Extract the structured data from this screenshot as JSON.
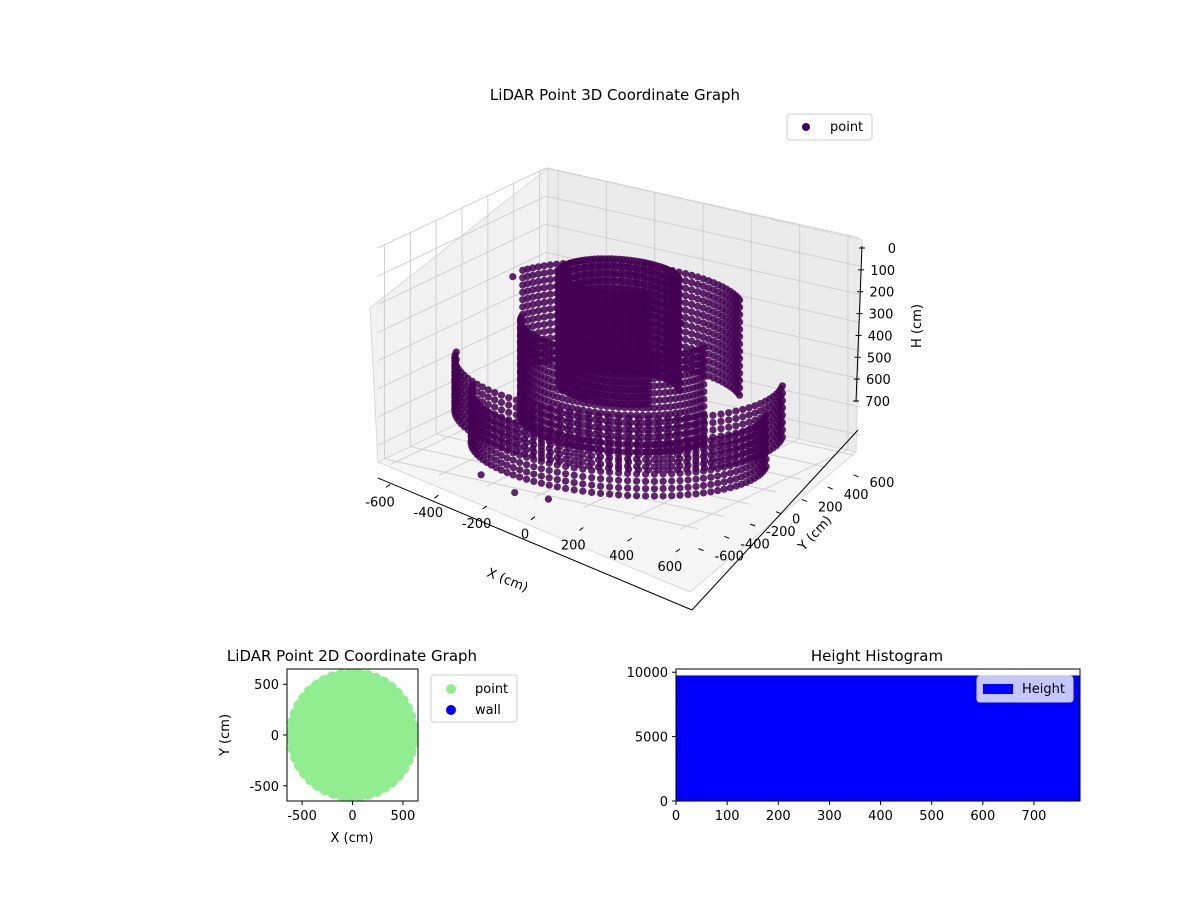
{
  "chart_data": [
    {
      "type": "scatter",
      "projection": "3d",
      "title": "LiDAR Point 3D Coordinate Graph",
      "xlabel": "X (cm)",
      "ylabel": "Y (cm)",
      "zlabel": "H (cm)",
      "xlim": [
        -650,
        650
      ],
      "ylim": [
        -650,
        650
      ],
      "zlim": [
        760,
        0
      ],
      "zaxis_inverted": true,
      "xticks": [
        -600,
        -400,
        -200,
        0,
        200,
        400,
        600
      ],
      "yticks": [
        -600,
        -400,
        -200,
        0,
        200,
        400,
        600
      ],
      "zticks": [
        0,
        100,
        200,
        300,
        400,
        500,
        600,
        700
      ],
      "legend": "top-right",
      "grid": true,
      "series": [
        {
          "name": "point",
          "color": "#440154",
          "structure": "concentric dome-shaped rings",
          "rings": [
            {
              "radius": 600,
              "h_low": 450,
              "h_high": 650,
              "theta_from": 200,
              "theta_to": 385
            },
            {
              "radius": 540,
              "h_low": 560,
              "h_high": 760,
              "theta_from": 200,
              "theta_to": 385
            },
            {
              "radius": 450,
              "h_low": 200,
              "h_high": 560,
              "theta_from": 40,
              "theta_to": 170
            },
            {
              "radius": 360,
              "h_low": 300,
              "h_high": 640,
              "theta_from": 200,
              "theta_to": 360
            },
            {
              "radius": 220,
              "h_low": 120,
              "h_high": 520,
              "theta_from": 30,
              "theta_to": 330
            }
          ],
          "outliers": [
            {
              "x": -600,
              "y": 300,
              "h": 300
            },
            {
              "x": -250,
              "y": -600,
              "h": 740
            },
            {
              "x": 50,
              "y": -640,
              "h": 760
            },
            {
              "x": -100,
              "y": -620,
              "h": 770
            },
            {
              "x": 150,
              "y": 200,
              "h": 300
            }
          ]
        }
      ]
    },
    {
      "type": "scatter",
      "title": "LiDAR Point 2D Coordinate Graph",
      "xlabel": "X (cm)",
      "ylabel": "Y (cm)",
      "xlim": [
        -650,
        650
      ],
      "ylim": [
        -650,
        650
      ],
      "xticks": [
        -500,
        0,
        500
      ],
      "yticks": [
        -500,
        0,
        500
      ],
      "legend": "outside-right",
      "series": [
        {
          "name": "point",
          "color": "#90ee90",
          "fill": "dense circular region, radius ~620"
        },
        {
          "name": "wall",
          "color": "#0000ff",
          "points": []
        }
      ]
    },
    {
      "type": "bar",
      "title": "Height Histogram",
      "xlim": [
        0,
        790
      ],
      "ylim": [
        0,
        10250
      ],
      "xticks": [
        0,
        100,
        200,
        300,
        400,
        500,
        600,
        700
      ],
      "yticks": [
        0,
        5000,
        10000
      ],
      "legend": "top-right",
      "series": [
        {
          "name": "Height",
          "color": "#0000ff",
          "bins": [
            {
              "from": 0,
              "to": 790,
              "count": 9750
            }
          ]
        }
      ]
    }
  ]
}
